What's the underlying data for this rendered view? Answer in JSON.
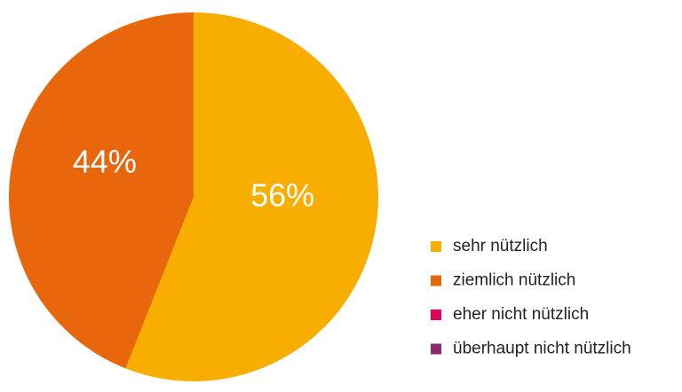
{
  "chart_data": {
    "type": "pie",
    "categories": [
      "sehr nützlich",
      "ziemlich nützlich",
      "eher nicht nützlich",
      "überhaupt nicht nützlich"
    ],
    "values": [
      56,
      44,
      0,
      0
    ],
    "value_labels": [
      "56%",
      "44%",
      null,
      null
    ],
    "colors": [
      "#f7ae00",
      "#e8670c",
      "#e2005a",
      "#8b2a6f"
    ],
    "legend": "right"
  }
}
